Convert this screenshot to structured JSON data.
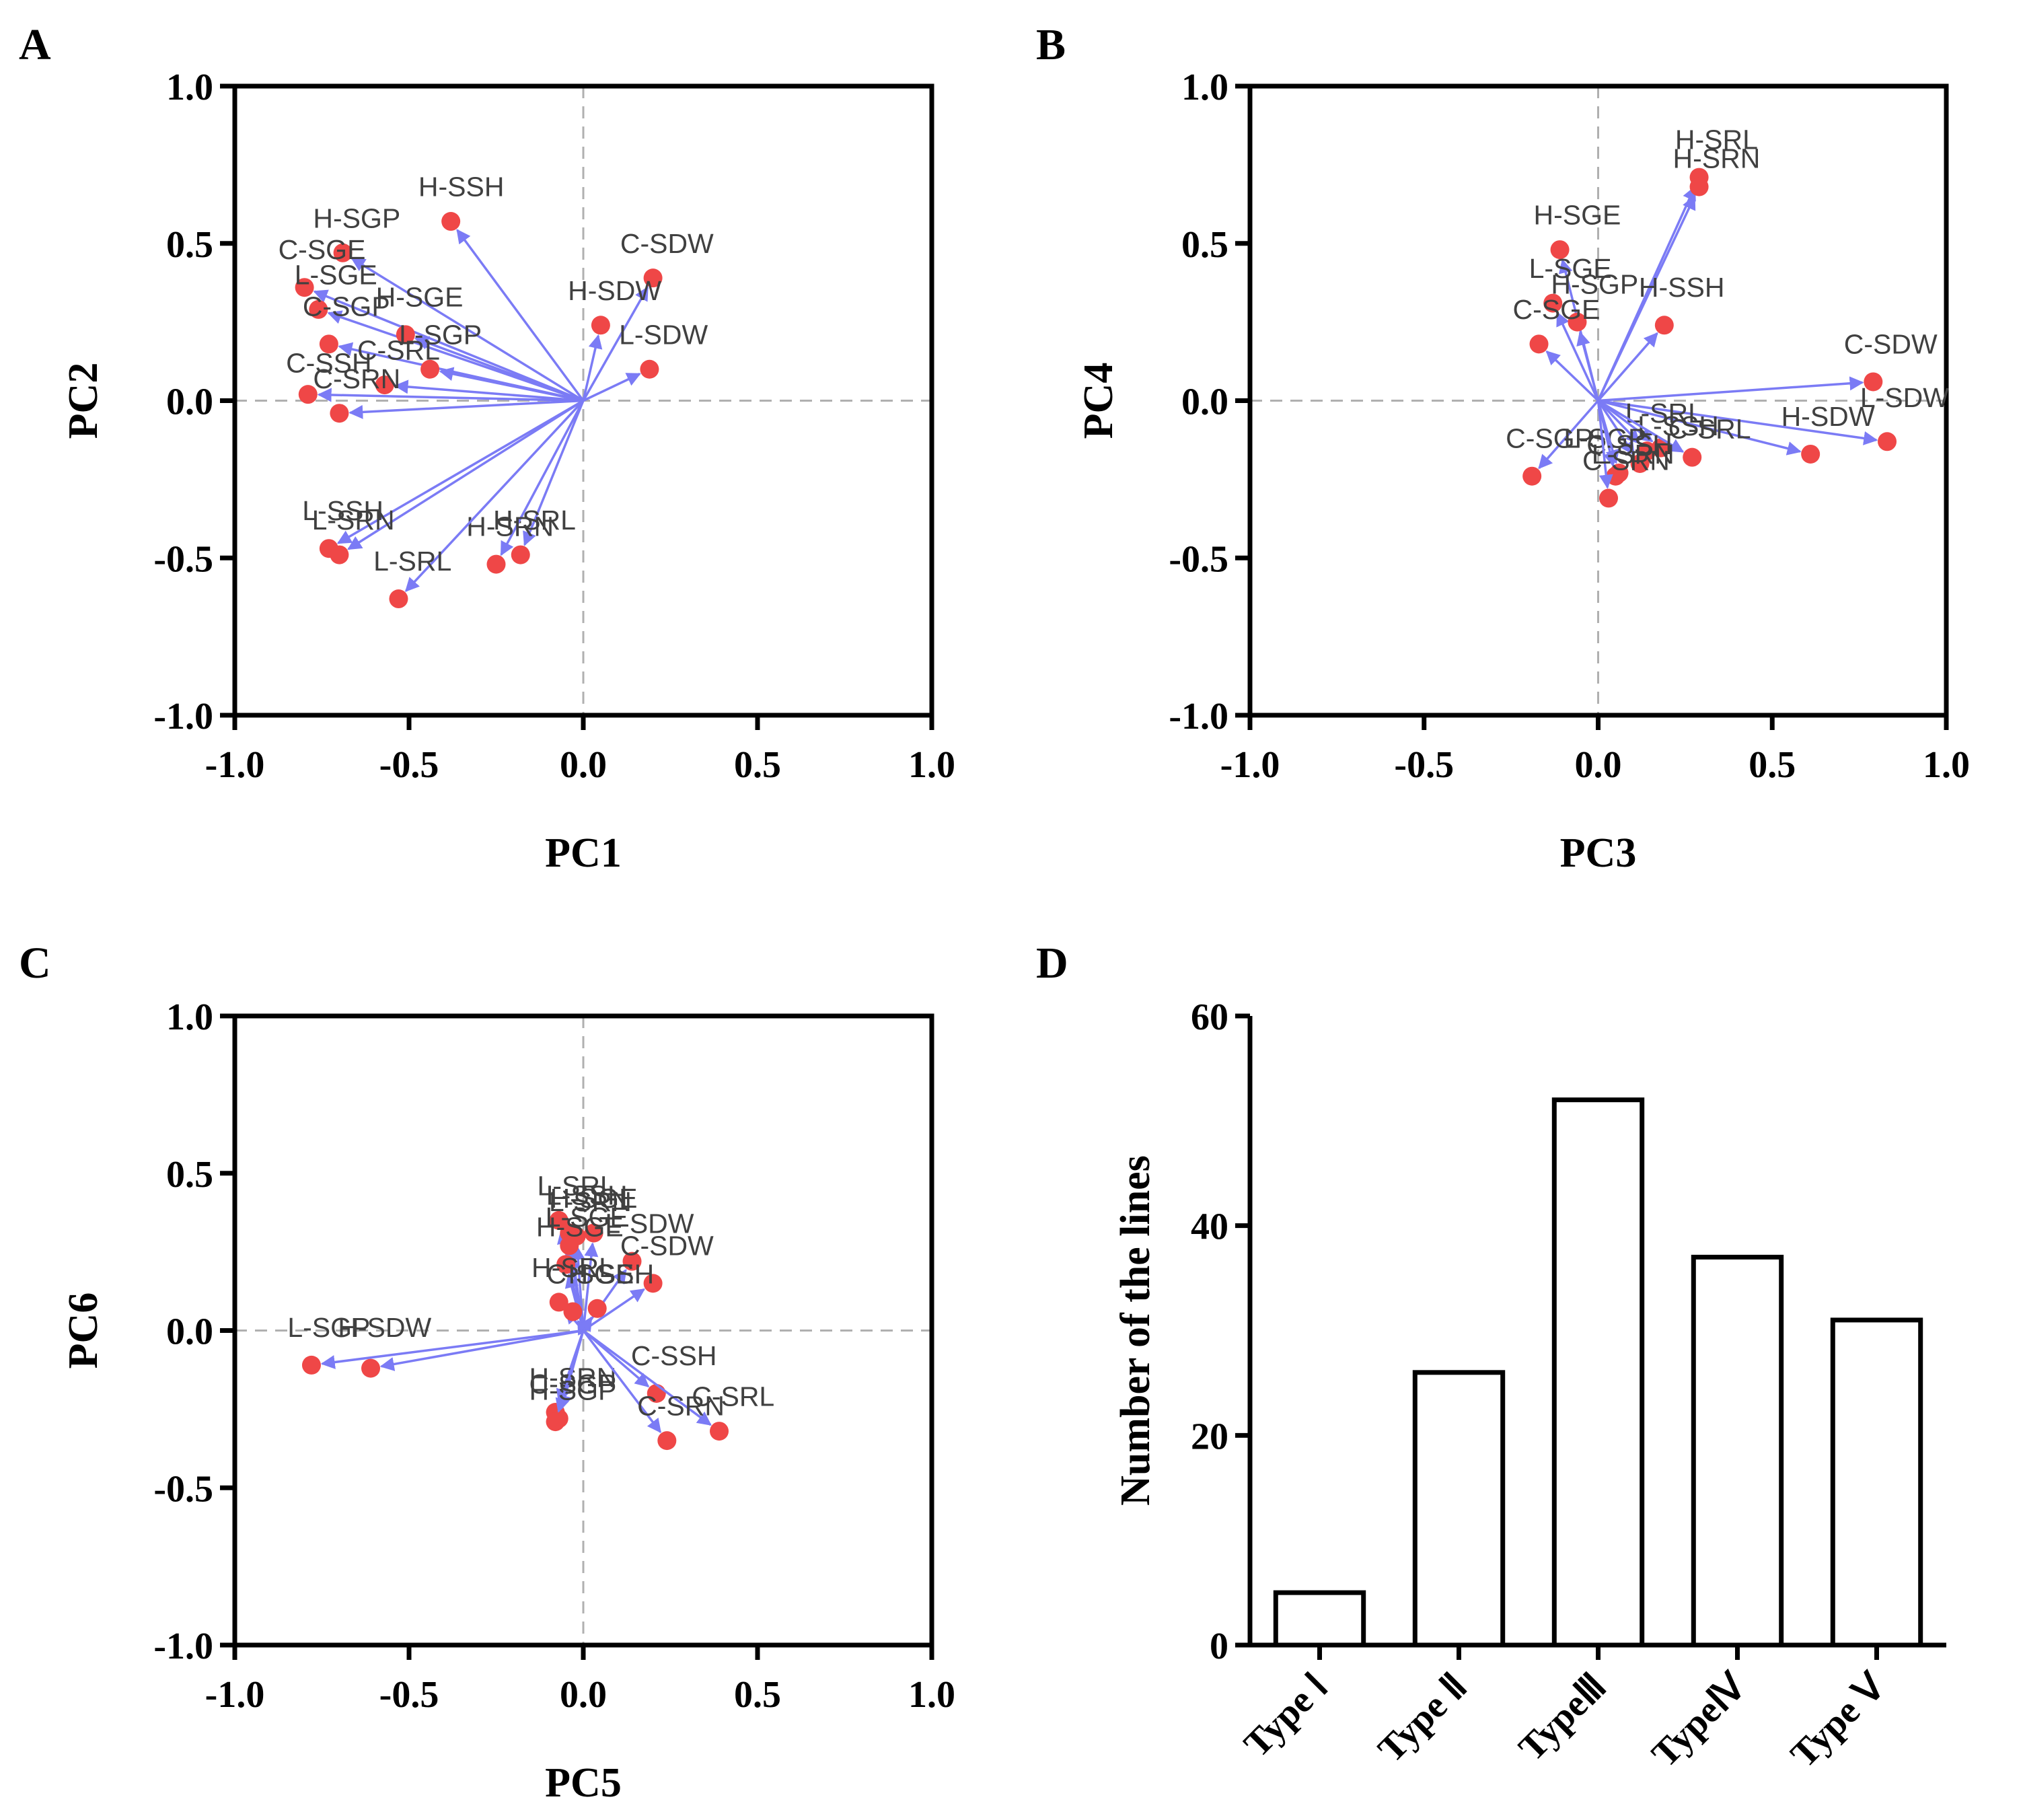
{
  "colors": {
    "arrow": "#7b7bf5",
    "point": "#ef4747",
    "frame": "#000000",
    "refline": "#b0b0b0"
  },
  "chart_data": [
    {
      "panel": "A",
      "type": "scatter",
      "subtype": "PCA loading biplot",
      "xlabel": "PC1",
      "ylabel": "PC2",
      "xlim": [
        -1.0,
        1.0
      ],
      "ylim": [
        -1.0,
        1.0
      ],
      "xticks": [
        "-1.0",
        "-0.5",
        "0.0",
        "0.5",
        "1.0"
      ],
      "yticks": [
        "1.0",
        "0.5",
        "0.0",
        "-0.5",
        "-1.0"
      ],
      "points": [
        {
          "label": "H-SSH",
          "x": -0.38,
          "y": 0.57,
          "lx": -0.35,
          "ly": 0.65
        },
        {
          "label": "H-SGP",
          "x": -0.69,
          "y": 0.47,
          "lx": -0.65,
          "ly": 0.55
        },
        {
          "label": "C-SGE",
          "x": -0.8,
          "y": 0.36,
          "lx": -0.75,
          "ly": 0.45
        },
        {
          "label": "L-SGE",
          "x": -0.76,
          "y": 0.29,
          "lx": -0.71,
          "ly": 0.37
        },
        {
          "label": "C-SGP",
          "x": -0.73,
          "y": 0.18,
          "lx": -0.68,
          "ly": 0.27
        },
        {
          "label": "H-SGE",
          "x": -0.51,
          "y": 0.21,
          "lx": -0.47,
          "ly": 0.3
        },
        {
          "label": "L-SGP",
          "x": -0.44,
          "y": 0.1,
          "lx": -0.41,
          "ly": 0.18
        },
        {
          "label": "C-SRL",
          "x": -0.57,
          "y": 0.05,
          "lx": -0.53,
          "ly": 0.13
        },
        {
          "label": "C-SSH",
          "x": -0.79,
          "y": 0.02,
          "lx": -0.73,
          "ly": 0.09
        },
        {
          "label": "C-SRN",
          "x": -0.7,
          "y": -0.04,
          "lx": -0.65,
          "ly": 0.04
        },
        {
          "label": "C-SDW",
          "x": 0.2,
          "y": 0.39,
          "lx": 0.24,
          "ly": 0.47
        },
        {
          "label": "H-SDW",
          "x": 0.05,
          "y": 0.24,
          "lx": 0.09,
          "ly": 0.32
        },
        {
          "label": "L-SDW",
          "x": 0.19,
          "y": 0.1,
          "lx": 0.23,
          "ly": 0.18
        },
        {
          "label": "L-SSH",
          "x": -0.73,
          "y": -0.47,
          "lx": -0.69,
          "ly": -0.38
        },
        {
          "label": "L-SRN",
          "x": -0.7,
          "y": -0.49,
          "lx": -0.66,
          "ly": -0.41
        },
        {
          "label": "H-SRL",
          "x": -0.18,
          "y": -0.49,
          "lx": -0.14,
          "ly": -0.41
        },
        {
          "label": "H-SRN",
          "x": -0.25,
          "y": -0.52,
          "lx": -0.21,
          "ly": -0.43
        },
        {
          "label": "L-SRL",
          "x": -0.53,
          "y": -0.63,
          "lx": -0.49,
          "ly": -0.54
        }
      ]
    },
    {
      "panel": "B",
      "type": "scatter",
      "subtype": "PCA loading biplot",
      "xlabel": "PC3",
      "ylabel": "PC4",
      "xlim": [
        -1.0,
        1.0
      ],
      "ylim": [
        -1.0,
        1.0
      ],
      "xticks": [
        "-1.0",
        "-0.5",
        "0.0",
        "0.5",
        "1.0"
      ],
      "yticks": [
        "1.0",
        "0.5",
        "0.0",
        "-0.5",
        "-1.0"
      ],
      "points": [
        {
          "label": "H-SRL",
          "x": 0.29,
          "y": 0.71,
          "lx": 0.34,
          "ly": 0.8
        },
        {
          "label": "H-SRN",
          "x": 0.29,
          "y": 0.68,
          "lx": 0.34,
          "ly": 0.74
        },
        {
          "label": "H-SGE",
          "x": -0.11,
          "y": 0.48,
          "lx": -0.06,
          "ly": 0.56
        },
        {
          "label": "L-SGE",
          "x": -0.13,
          "y": 0.31,
          "lx": -0.08,
          "ly": 0.39
        },
        {
          "label": "H-SGP",
          "x": -0.06,
          "y": 0.25,
          "lx": -0.01,
          "ly": 0.34
        },
        {
          "label": "H-SSH",
          "x": 0.19,
          "y": 0.24,
          "lx": 0.24,
          "ly": 0.33
        },
        {
          "label": "C-SGE",
          "x": -0.17,
          "y": 0.18,
          "lx": -0.12,
          "ly": 0.26
        },
        {
          "label": "C-SDW",
          "x": 0.79,
          "y": 0.06,
          "lx": 0.84,
          "ly": 0.15
        },
        {
          "label": "L-SDW",
          "x": 0.83,
          "y": -0.13,
          "lx": 0.88,
          "ly": -0.02
        },
        {
          "label": "H-SDW",
          "x": 0.61,
          "y": -0.17,
          "lx": 0.66,
          "ly": -0.08
        },
        {
          "label": "L-SRL",
          "x": 0.14,
          "y": -0.16,
          "lx": 0.19,
          "ly": -0.07
        },
        {
          "label": "L-SSH",
          "x": 0.18,
          "y": -0.15,
          "lx": 0.23,
          "ly": -0.11
        },
        {
          "label": "C-SRL",
          "x": 0.27,
          "y": -0.18,
          "lx": 0.32,
          "ly": -0.12
        },
        {
          "label": "C-SGP",
          "x": -0.19,
          "y": -0.24,
          "lx": -0.14,
          "ly": -0.15
        },
        {
          "label": "L-SGP",
          "x": 0.12,
          "y": -0.2,
          "lx": 0.02,
          "ly": -0.15
        },
        {
          "label": "C-SSH",
          "x": 0.05,
          "y": -0.24,
          "lx": 0.09,
          "ly": -0.17
        },
        {
          "label": "L-SRN",
          "x": 0.06,
          "y": -0.23,
          "lx": 0.1,
          "ly": -0.2
        },
        {
          "label": "C-SRN",
          "x": 0.03,
          "y": -0.31,
          "lx": 0.08,
          "ly": -0.22
        }
      ]
    },
    {
      "panel": "C",
      "type": "scatter",
      "subtype": "PCA loading biplot",
      "xlabel": "PC5",
      "ylabel": "PC6",
      "xlim": [
        -1.0,
        1.0
      ],
      "ylim": [
        -1.0,
        1.0
      ],
      "xticks": [
        "-1.0",
        "-0.5",
        "0.0",
        "0.5",
        "1.0"
      ],
      "yticks": [
        "1.0",
        "0.5",
        "0.0",
        "-0.5",
        "-1.0"
      ],
      "points": [
        {
          "label": "L-SRL",
          "x": -0.07,
          "y": 0.35,
          "lx": -0.02,
          "ly": 0.43
        },
        {
          "label": "L-SSH",
          "x": -0.04,
          "y": 0.31,
          "lx": 0.01,
          "ly": 0.4
        },
        {
          "label": "H-SGE",
          "x": -0.02,
          "y": 0.3,
          "lx": 0.03,
          "ly": 0.39
        },
        {
          "label": "L-SRN",
          "x": 0.03,
          "y": 0.31,
          "lx": 0.02,
          "ly": 0.38
        },
        {
          "label": "L-SGE",
          "x": -0.04,
          "y": 0.27,
          "lx": 0.01,
          "ly": 0.33
        },
        {
          "label": "H-SGE",
          "x": -0.05,
          "y": 0.21,
          "lx": -0.01,
          "ly": 0.3
        },
        {
          "label": "L-SDW",
          "x": 0.14,
          "y": 0.22,
          "lx": 0.19,
          "ly": 0.31
        },
        {
          "label": "C-SDW",
          "x": 0.2,
          "y": 0.15,
          "lx": 0.24,
          "ly": 0.24
        },
        {
          "label": "H-SRL",
          "x": -0.07,
          "y": 0.09,
          "lx": -0.03,
          "ly": 0.17
        },
        {
          "label": "C-SGE",
          "x": -0.03,
          "y": 0.06,
          "lx": 0.02,
          "ly": 0.15
        },
        {
          "label": "H-SSH",
          "x": 0.04,
          "y": 0.07,
          "lx": 0.08,
          "ly": 0.15
        },
        {
          "label": "L-SGP",
          "x": -0.78,
          "y": -0.11,
          "lx": -0.73,
          "ly": -0.02
        },
        {
          "label": "H-SDW",
          "x": -0.61,
          "y": -0.12,
          "lx": -0.57,
          "ly": -0.02
        },
        {
          "label": "C-SSH",
          "x": 0.21,
          "y": -0.2,
          "lx": 0.26,
          "ly": -0.11
        },
        {
          "label": "H-SRN",
          "x": -0.08,
          "y": -0.26,
          "lx": -0.03,
          "ly": -0.18
        },
        {
          "label": "C-SGP",
          "x": -0.07,
          "y": -0.28,
          "lx": -0.03,
          "ly": -0.2
        },
        {
          "label": "H-SGP",
          "x": -0.08,
          "y": -0.29,
          "lx": -0.03,
          "ly": -0.22
        },
        {
          "label": "C-SRL",
          "x": 0.39,
          "y": -0.32,
          "lx": 0.43,
          "ly": -0.24
        },
        {
          "label": "C-SRN",
          "x": 0.24,
          "y": -0.35,
          "lx": 0.28,
          "ly": -0.27
        }
      ]
    },
    {
      "panel": "D",
      "type": "bar",
      "ylabel": "Number of the lines",
      "xlabel": "",
      "ylim": [
        0,
        60
      ],
      "yticks": [
        "60",
        "40",
        "20",
        "0"
      ],
      "categories": [
        "Type Ⅰ",
        "Type Ⅱ",
        "TypeⅢ",
        "TypeⅣ",
        "Type Ⅴ"
      ],
      "values": [
        5,
        26,
        52,
        37,
        31
      ]
    }
  ]
}
